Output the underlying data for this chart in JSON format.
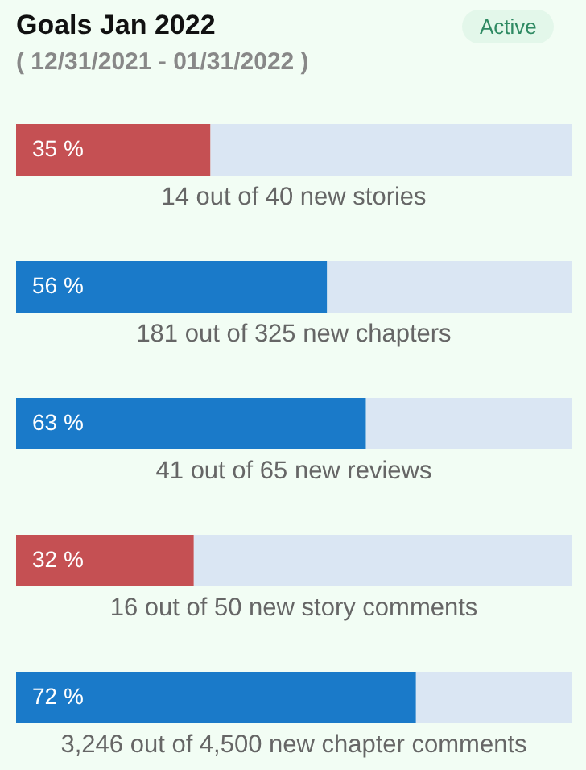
{
  "chart_data": {
    "type": "bar",
    "orientation": "horizontal",
    "stacked": true,
    "title": "Goals Jan 2022",
    "subtitle": "( 12/31/2021 - 01/31/2022 )",
    "annotations": [
      "Active"
    ],
    "categories": [
      "14 out of 40 new stories",
      "181 out of 325 new chapters",
      "41 out of 65 new reviews",
      "16 out of 50 new story comments",
      "3,246 out of 4,500 new chapter comments"
    ],
    "xlim": [
      0,
      100
    ],
    "series": [
      {
        "colors": [
          "#c55053",
          "#1a7ac9",
          "#1a7ac9",
          "#c55053",
          "#1a7ac9"
        ],
        "values": [
          35,
          56,
          63,
          32,
          72
        ],
        "value_labels": [
          "35 %",
          "56 %",
          "63 %",
          "32 %",
          "72 %"
        ]
      },
      {
        "color": "#dae6f3",
        "values": [
          65,
          44,
          37,
          68,
          28
        ]
      }
    ]
  }
}
